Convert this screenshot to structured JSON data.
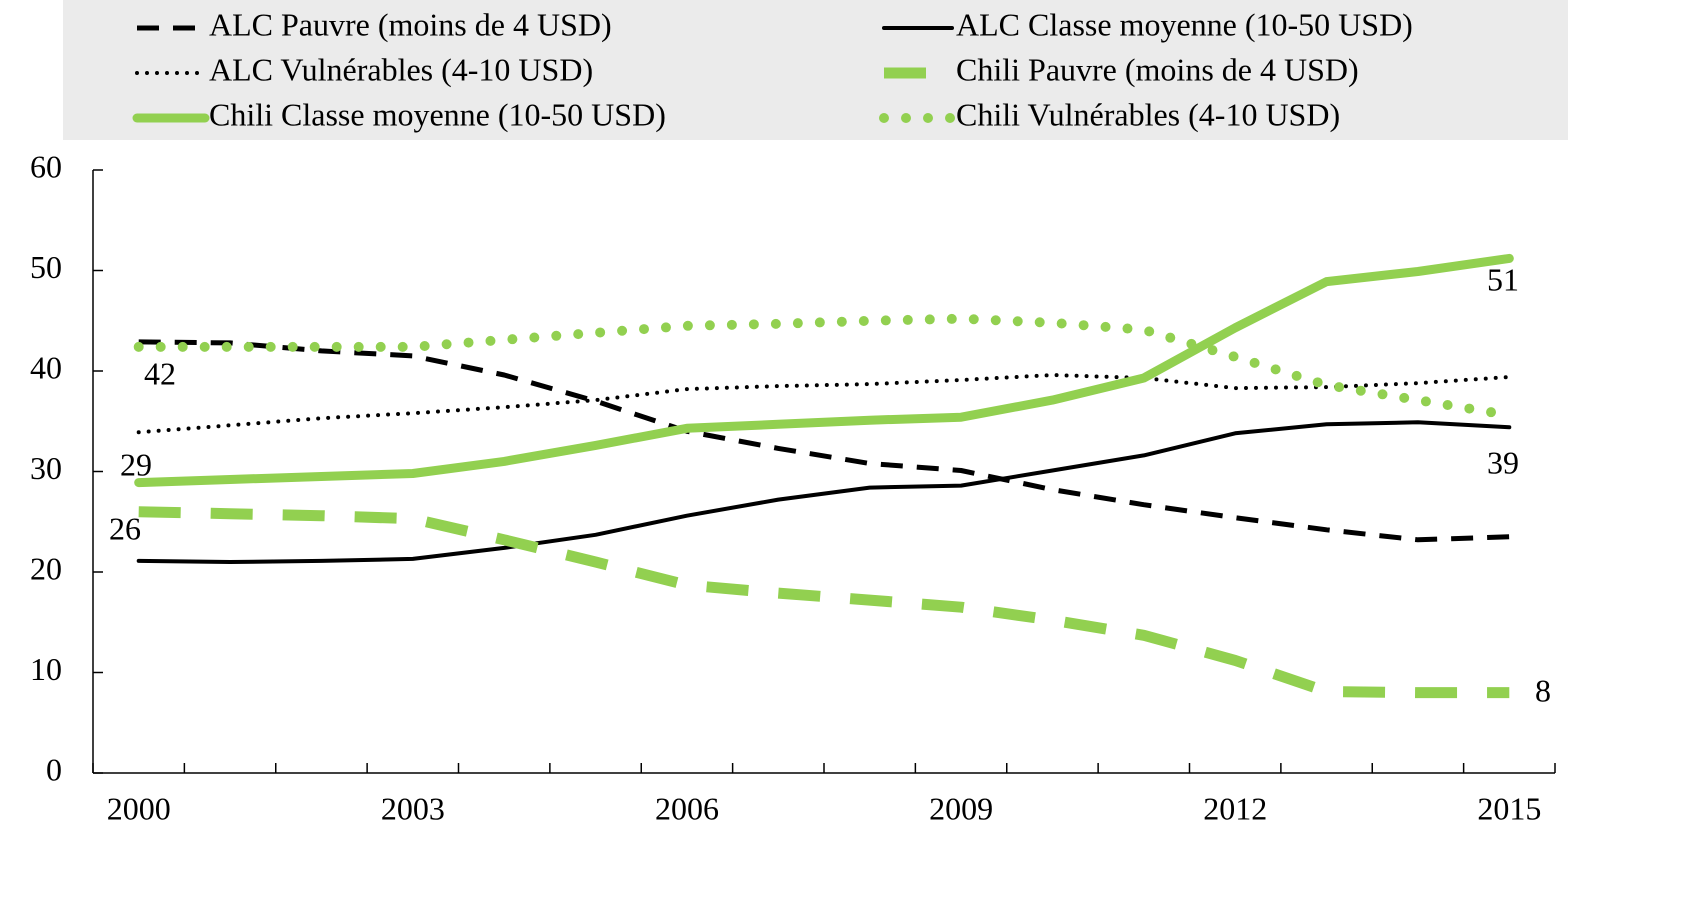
{
  "chart_data": {
    "type": "line",
    "categories": [
      "2000",
      null,
      null,
      "2003",
      null,
      null,
      "2006",
      null,
      null,
      "2009",
      null,
      null,
      "2012",
      null,
      null,
      "2015"
    ],
    "ylim": [
      0,
      60
    ],
    "yticks": [
      0,
      10,
      20,
      30,
      40,
      50,
      60
    ],
    "legend": "top",
    "series": [
      {
        "name": "ALC Pauvre (moins de 4 USD)",
        "color": "#000000",
        "style": "dashed",
        "values": [
          42.9,
          42.8,
          42,
          41.5,
          39.6,
          37,
          34,
          32.3,
          30.8,
          30.1,
          28.2,
          26.7,
          25.4,
          24.2,
          23.2,
          23.5
        ]
      },
      {
        "name": "ALC Classe moyenne (10-50 USD)",
        "color": "#000000",
        "style": "solid",
        "values": [
          21.1,
          21,
          21.1,
          21.3,
          22.4,
          23.7,
          25.6,
          27.2,
          28.4,
          28.6,
          30.1,
          31.6,
          33.8,
          34.7,
          34.9,
          34.4
        ]
      },
      {
        "name": "ALC Vulnérables (4-10 USD)",
        "color": "#000000",
        "style": "dotted",
        "values": [
          33.9,
          34.6,
          35.3,
          35.8,
          36.4,
          37.1,
          38.2,
          38.5,
          38.7,
          39.1,
          39.6,
          39.3,
          38.3,
          38.4,
          38.8,
          39.4
        ]
      },
      {
        "name": "Chili Pauvre (moins de 4 USD)",
        "color": "#92d050",
        "style": "dashed",
        "values": [
          26,
          25.8,
          25.6,
          25.3,
          23.2,
          21,
          18.7,
          17.9,
          17.2,
          16.5,
          15.2,
          13.7,
          11.2,
          8.1,
          8,
          8
        ]
      },
      {
        "name": "Chili Classe moyenne (10-50 USD)",
        "color": "#92d050",
        "style": "solid",
        "values": [
          28.9,
          29.2,
          29.5,
          29.8,
          31,
          32.6,
          34.3,
          34.7,
          35.1,
          35.4,
          37.1,
          39.3,
          44.3,
          48.9,
          49.9,
          51.2
        ]
      },
      {
        "name": "Chili Vulnérables (4-10 USD)",
        "color": "#92d050",
        "style": "dotted",
        "values": [
          42.4,
          42.4,
          42.4,
          42.4,
          43.1,
          43.8,
          44.5,
          44.7,
          45,
          45.2,
          44.8,
          44.1,
          41.4,
          38.6,
          37.1,
          35.6
        ]
      }
    ],
    "annotations": [
      "42",
      "29",
      "26",
      "51",
      "39",
      "8"
    ]
  }
}
